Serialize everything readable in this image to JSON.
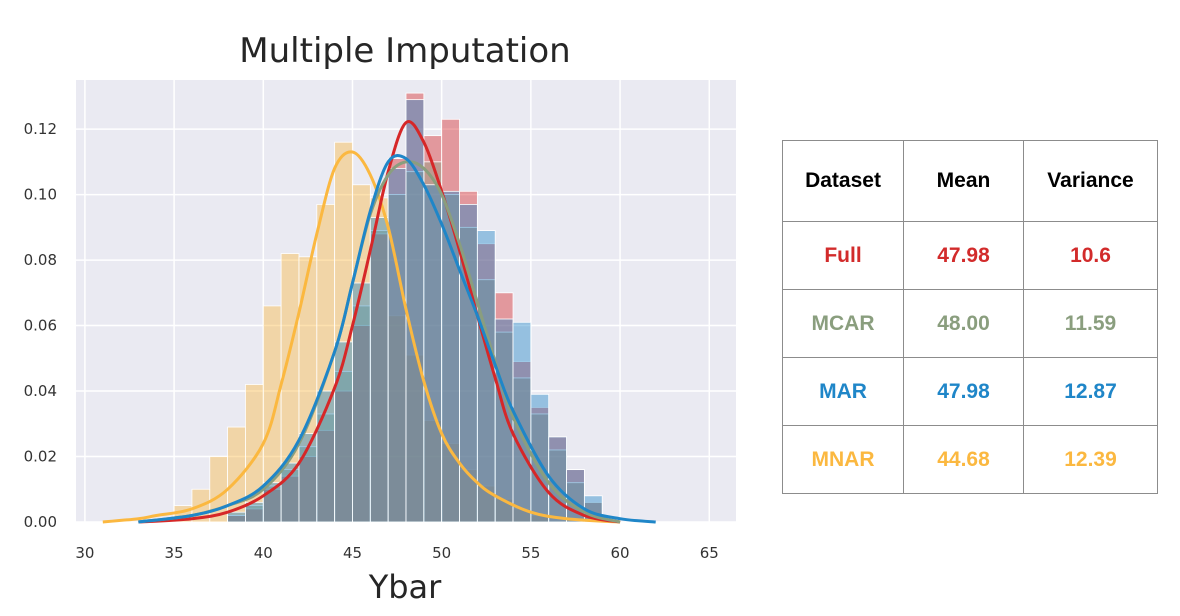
{
  "chart_data": {
    "type": "histogram-kde",
    "title": "Multiple Imputation",
    "xlabel": "Ybar",
    "ylabel": "",
    "xlim": [
      29.5,
      66.5
    ],
    "ylim": [
      0,
      0.135
    ],
    "x_ticks": [
      30,
      35,
      40,
      45,
      50,
      55,
      60,
      65
    ],
    "y_ticks": [
      0.0,
      0.02,
      0.04,
      0.06,
      0.08,
      0.1,
      0.12
    ],
    "y_tick_labels": [
      "0.00",
      "0.02",
      "0.04",
      "0.06",
      "0.08",
      "0.10",
      "0.12"
    ],
    "grid": true,
    "bin_width": 1,
    "series": [
      {
        "color": "#d62728",
        "bin_start": 38,
        "hist": [
          0.002,
          0.004,
          0.01,
          0.014,
          0.02,
          0.028,
          0.04,
          0.06,
          0.088,
          0.111,
          0.131,
          0.118,
          0.123,
          0.101,
          0.085,
          0.07,
          0.049,
          0.035,
          0.026,
          0.016,
          0.006
        ],
        "kde_x": [
          33,
          36,
          38,
          40,
          42,
          44,
          45,
          46,
          47,
          48,
          49,
          50,
          51,
          52,
          53,
          54,
          56,
          58,
          60
        ],
        "kde_y": [
          0.0,
          0.001,
          0.003,
          0.008,
          0.018,
          0.041,
          0.06,
          0.083,
          0.107,
          0.122,
          0.116,
          0.101,
          0.083,
          0.063,
          0.044,
          0.027,
          0.009,
          0.002,
          0.0
        ]
      },
      {
        "color": "#8a9e7e",
        "bin_start": 38,
        "hist": [
          0.002,
          0.005,
          0.011,
          0.016,
          0.023,
          0.033,
          0.046,
          0.066,
          0.089,
          0.1,
          0.107,
          0.11,
          0.1,
          0.09,
          0.074,
          0.058,
          0.044,
          0.033,
          0.022,
          0.012,
          0.006
        ],
        "kde_x": [
          33,
          36,
          38,
          40,
          42,
          44,
          45,
          46,
          47,
          48,
          49,
          50,
          51,
          52,
          53,
          54,
          56,
          58,
          60
        ],
        "kde_y": [
          0.0,
          0.002,
          0.005,
          0.01,
          0.024,
          0.052,
          0.073,
          0.094,
          0.106,
          0.11,
          0.108,
          0.1,
          0.085,
          0.067,
          0.049,
          0.032,
          0.012,
          0.003,
          0.0
        ]
      },
      {
        "color": "#1f86c8",
        "bin_start": 38,
        "hist": [
          0.003,
          0.006,
          0.012,
          0.018,
          0.027,
          0.04,
          0.055,
          0.073,
          0.093,
          0.108,
          0.129,
          0.103,
          0.101,
          0.097,
          0.089,
          0.062,
          0.061,
          0.039,
          0.026,
          0.016,
          0.008
        ],
        "kde_x": [
          33,
          36,
          38,
          40,
          42,
          44,
          45,
          46,
          47,
          48,
          49,
          50,
          51,
          52,
          53,
          54,
          56,
          58,
          60,
          62
        ],
        "kde_y": [
          0.0,
          0.002,
          0.005,
          0.011,
          0.025,
          0.052,
          0.073,
          0.095,
          0.11,
          0.111,
          0.103,
          0.091,
          0.077,
          0.063,
          0.048,
          0.034,
          0.014,
          0.004,
          0.001,
          0.0
        ]
      },
      {
        "color": "#fbb840",
        "bin_start": 35,
        "hist": [
          0.005,
          0.01,
          0.02,
          0.029,
          0.042,
          0.066,
          0.082,
          0.081,
          0.097,
          0.116,
          0.103,
          0.099,
          0.063,
          0.051,
          0.031,
          0.024,
          0.016,
          0.011,
          0.007,
          0.004,
          0.002
        ],
        "kde_x": [
          31,
          33,
          34,
          36,
          38,
          40,
          41,
          42,
          43,
          44,
          45,
          46,
          47,
          48,
          49,
          50,
          51,
          52,
          53,
          55,
          57,
          60
        ],
        "kde_y": [
          0.0,
          0.001,
          0.002,
          0.004,
          0.01,
          0.024,
          0.042,
          0.064,
          0.088,
          0.108,
          0.113,
          0.106,
          0.09,
          0.065,
          0.043,
          0.027,
          0.018,
          0.012,
          0.008,
          0.003,
          0.001,
          0.0
        ]
      }
    ]
  },
  "table": {
    "headers": [
      "Dataset",
      "Mean",
      "Variance"
    ],
    "rows": [
      {
        "dataset": "Full",
        "mean": "47.98",
        "variance": "10.6",
        "color": "#d22b2b"
      },
      {
        "dataset": "MCAR",
        "mean": "48.00",
        "variance": "11.59",
        "color": "#8a9e7e"
      },
      {
        "dataset": "MAR",
        "mean": "47.98",
        "variance": "12.87",
        "color": "#1f86c8"
      },
      {
        "dataset": "MNAR",
        "mean": "44.68",
        "variance": "12.39",
        "color": "#fbb840"
      }
    ]
  }
}
